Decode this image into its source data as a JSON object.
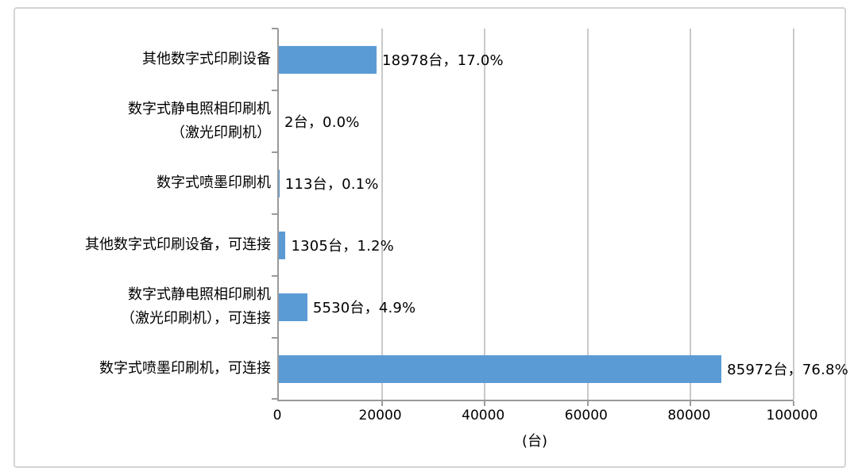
{
  "chart_data": {
    "type": "bar",
    "orientation": "horizontal",
    "title": "",
    "xlabel": "(台)",
    "ylabel": "",
    "xlim": [
      0,
      100000
    ],
    "grid": "vertical-gridlines-on",
    "legend": "none",
    "bar_color": "#5b9bd5",
    "gridline_color": "#c9c9c9",
    "axis_color": "#9a9a9a",
    "x_ticks": [
      "0",
      "20000",
      "40000",
      "60000",
      "80000",
      "100000"
    ],
    "categories": [
      "其他数字式印刷设备",
      "数字式静电照相印刷机\n（激光印刷机）",
      "数字式喷墨印刷机",
      "其他数字式印刷设备，可连接",
      "数字式静电照相印刷机\n（激光印刷机），可连接",
      "数字式喷墨印刷机，可连接"
    ],
    "values": [
      18978,
      2,
      113,
      1305,
      5530,
      85972
    ],
    "units": [
      "台",
      "台",
      "台",
      "台",
      "台",
      "台"
    ],
    "percentages": [
      17.0,
      0.0,
      0.1,
      1.2,
      4.9,
      76.8
    ],
    "data_labels": [
      "18978台，17.0%",
      "2台，0.0%",
      "113台，0.1%",
      "1305台，1.2%",
      "5530台，4.9%",
      "85972台，76.8%"
    ]
  }
}
